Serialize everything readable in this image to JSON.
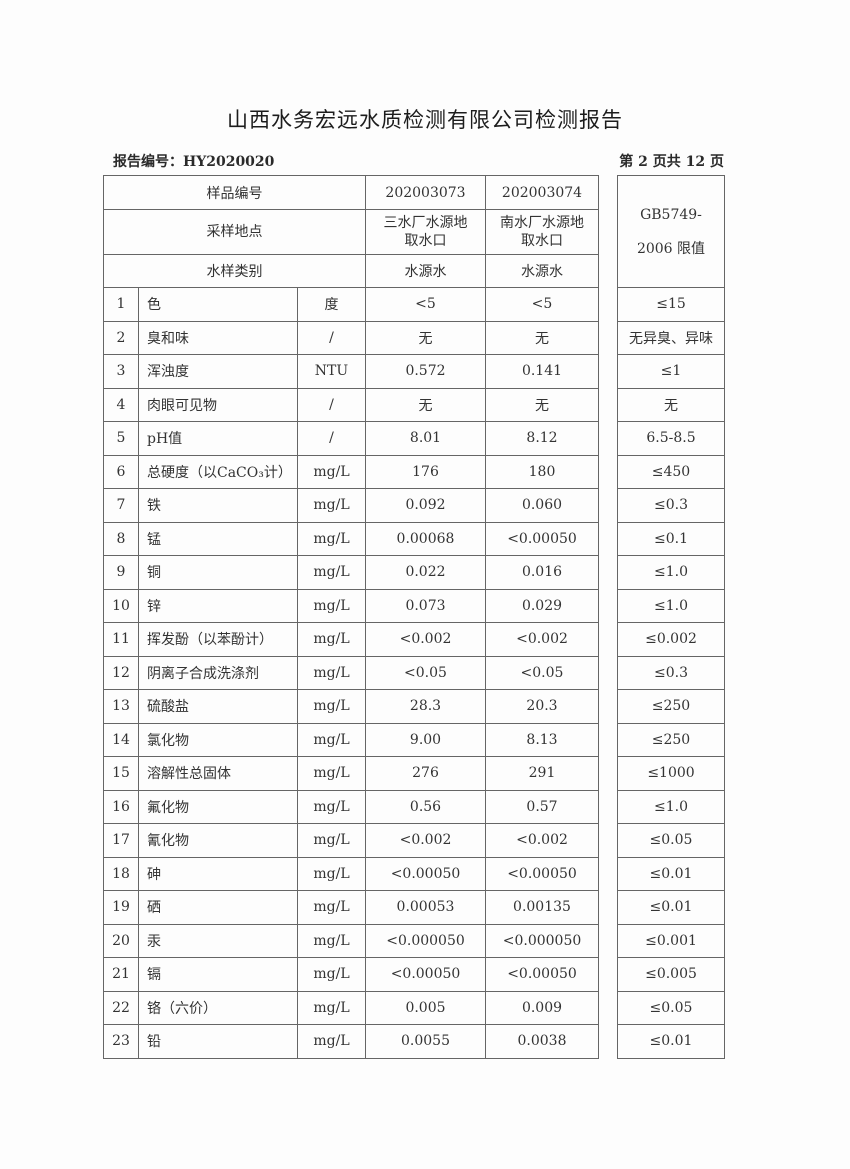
{
  "title": "山西水务宏远水质检测有限公司检测报告",
  "report_no": "报告编号：HY2020020",
  "page_info": "第 2 页共 12 页",
  "header": {
    "sample_no_label": "样品编号",
    "sample_ids": [
      "202003073",
      "202003074"
    ],
    "site_label": "采样地点",
    "sites": [
      "三水厂水源地取水口",
      "南水厂水源地取水口"
    ],
    "type_label": "水样类别",
    "types": [
      "水源水",
      "水源水"
    ],
    "limit_label": "GB5749-2006 限值"
  },
  "rows": [
    {
      "no": "1",
      "item": "色",
      "unit": "度",
      "s1": "<5",
      "s2": "<5",
      "limit": "≤15"
    },
    {
      "no": "2",
      "item": "臭和味",
      "unit": "/",
      "s1": "无",
      "s2": "无",
      "limit": "无异臭、异味"
    },
    {
      "no": "3",
      "item": "浑浊度",
      "unit": "NTU",
      "s1": "0.572",
      "s2": "0.141",
      "limit": "≤1"
    },
    {
      "no": "4",
      "item": "肉眼可见物",
      "unit": "/",
      "s1": "无",
      "s2": "无",
      "limit": "无"
    },
    {
      "no": "5",
      "item": "pH值",
      "unit": "/",
      "s1": "8.01",
      "s2": "8.12",
      "limit": "6.5-8.5"
    },
    {
      "no": "6",
      "item": "总硬度（以CaCO₃计）",
      "unit": "mg/L",
      "s1": "176",
      "s2": "180",
      "limit": "≤450"
    },
    {
      "no": "7",
      "item": "铁",
      "unit": "mg/L",
      "s1": "0.092",
      "s2": "0.060",
      "limit": "≤0.3"
    },
    {
      "no": "8",
      "item": "锰",
      "unit": "mg/L",
      "s1": "0.00068",
      "s2": "<0.00050",
      "limit": "≤0.1"
    },
    {
      "no": "9",
      "item": "铜",
      "unit": "mg/L",
      "s1": "0.022",
      "s2": "0.016",
      "limit": "≤1.0"
    },
    {
      "no": "10",
      "item": "锌",
      "unit": "mg/L",
      "s1": "0.073",
      "s2": "0.029",
      "limit": "≤1.0"
    },
    {
      "no": "11",
      "item": "挥发酚（以苯酚计）",
      "unit": "mg/L",
      "s1": "<0.002",
      "s2": "<0.002",
      "limit": "≤0.002"
    },
    {
      "no": "12",
      "item": "阴离子合成洗涤剂",
      "unit": "mg/L",
      "s1": "<0.05",
      "s2": "<0.05",
      "limit": "≤0.3"
    },
    {
      "no": "13",
      "item": "硫酸盐",
      "unit": "mg/L",
      "s1": "28.3",
      "s2": "20.3",
      "limit": "≤250"
    },
    {
      "no": "14",
      "item": "氯化物",
      "unit": "mg/L",
      "s1": "9.00",
      "s2": "8.13",
      "limit": "≤250"
    },
    {
      "no": "15",
      "item": "溶解性总固体",
      "unit": "mg/L",
      "s1": "276",
      "s2": "291",
      "limit": "≤1000"
    },
    {
      "no": "16",
      "item": "氟化物",
      "unit": "mg/L",
      "s1": "0.56",
      "s2": "0.57",
      "limit": "≤1.0"
    },
    {
      "no": "17",
      "item": "氰化物",
      "unit": "mg/L",
      "s1": "<0.002",
      "s2": "<0.002",
      "limit": "≤0.05"
    },
    {
      "no": "18",
      "item": "砷",
      "unit": "mg/L",
      "s1": "<0.00050",
      "s2": "<0.00050",
      "limit": "≤0.01"
    },
    {
      "no": "19",
      "item": "硒",
      "unit": "mg/L",
      "s1": "0.00053",
      "s2": "0.00135",
      "limit": "≤0.01"
    },
    {
      "no": "20",
      "item": "汞",
      "unit": "mg/L",
      "s1": "<0.000050",
      "s2": "<0.000050",
      "limit": "≤0.001"
    },
    {
      "no": "21",
      "item": "镉",
      "unit": "mg/L",
      "s1": "<0.00050",
      "s2": "<0.00050",
      "limit": "≤0.005"
    },
    {
      "no": "22",
      "item": "铬（六价）",
      "unit": "mg/L",
      "s1": "0.005",
      "s2": "0.009",
      "limit": "≤0.05"
    },
    {
      "no": "23",
      "item": "铅",
      "unit": "mg/L",
      "s1": "0.0055",
      "s2": "0.0038",
      "limit": "≤0.01"
    }
  ]
}
